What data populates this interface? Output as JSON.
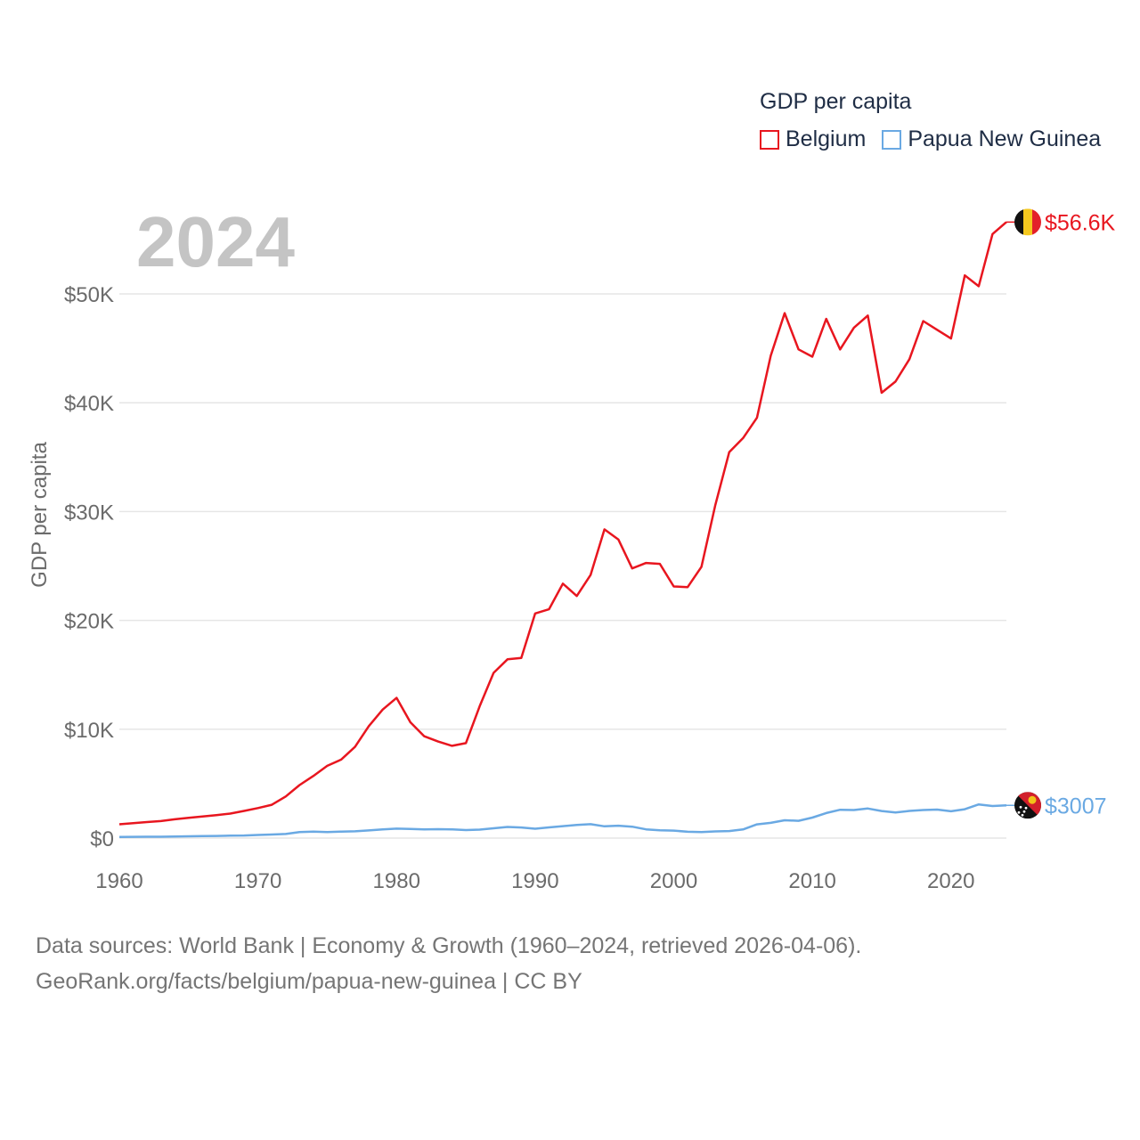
{
  "year_label": "2024",
  "legend": {
    "title": "GDP per capita",
    "items": [
      {
        "label": "Belgium",
        "color": "#e8161f"
      },
      {
        "label": "Papua New Guinea",
        "color": "#6aa9e3"
      }
    ]
  },
  "source": {
    "line1": "Data sources: World Bank | Economy & Growth (1960–2024, retrieved 2026-04-06).",
    "line2": "GeoRank.org/facts/belgium/papua-new-guinea | CC BY"
  },
  "chart_data": {
    "type": "line",
    "title": "GDP per capita",
    "xlabel": "",
    "ylabel": "GDP per capita",
    "xlim": [
      1960,
      2024
    ],
    "ylim": [
      0,
      56600
    ],
    "x_ticks": [
      1960,
      1970,
      1980,
      1990,
      2000,
      2010,
      2020
    ],
    "y_ticks": [
      {
        "value": 0,
        "label": "$0"
      },
      {
        "value": 10000,
        "label": "$10K"
      },
      {
        "value": 20000,
        "label": "$20K"
      },
      {
        "value": 30000,
        "label": "$30K"
      },
      {
        "value": 40000,
        "label": "$40K"
      },
      {
        "value": 50000,
        "label": "$50K"
      }
    ],
    "grid": true,
    "x": [
      1960,
      1961,
      1962,
      1963,
      1964,
      1965,
      1966,
      1967,
      1968,
      1969,
      1970,
      1971,
      1972,
      1973,
      1974,
      1975,
      1976,
      1977,
      1978,
      1979,
      1980,
      1981,
      1982,
      1983,
      1984,
      1985,
      1986,
      1987,
      1988,
      1989,
      1990,
      1991,
      1992,
      1993,
      1994,
      1995,
      1996,
      1997,
      1998,
      1999,
      2000,
      2001,
      2002,
      2003,
      2004,
      2005,
      2006,
      2007,
      2008,
      2009,
      2010,
      2011,
      2012,
      2013,
      2014,
      2015,
      2016,
      2017,
      2018,
      2019,
      2020,
      2021,
      2022,
      2023,
      2024
    ],
    "series": [
      {
        "name": "Belgium",
        "color": "#e8161f",
        "end_label": "$56.6K",
        "flag": "belgium-flag",
        "values": [
          1270,
          1370,
          1470,
          1560,
          1730,
          1860,
          1980,
          2110,
          2250,
          2500,
          2760,
          3060,
          3820,
          4870,
          5710,
          6640,
          7210,
          8380,
          10290,
          11810,
          12880,
          10640,
          9350,
          8870,
          8480,
          8720,
          12120,
          15180,
          16420,
          16550,
          20640,
          21020,
          23380,
          22240,
          24170,
          28360,
          27440,
          24780,
          25280,
          25200,
          23120,
          23060,
          24930,
          30610,
          35470,
          36750,
          38620,
          44320,
          48230,
          44900,
          44230,
          47710,
          44900,
          46900,
          48010,
          40920,
          41950,
          44000,
          47500,
          46700,
          45900,
          51700,
          50700,
          55500,
          56600
        ]
      },
      {
        "name": "Papua New Guinea",
        "color": "#6aa9e3",
        "end_label": "$3007",
        "flag": "papua-new-guinea-flag",
        "values": [
          110,
          115,
          120,
          125,
          140,
          160,
          180,
          200,
          220,
          240,
          290,
          330,
          380,
          560,
          600,
          560,
          600,
          620,
          700,
          800,
          870,
          840,
          790,
          820,
          800,
          740,
          780,
          900,
          1020,
          970,
          860,
          980,
          1100,
          1200,
          1280,
          1080,
          1140,
          1050,
          800,
          710,
          690,
          580,
          550,
          610,
          650,
          790,
          1260,
          1400,
          1640,
          1590,
          1880,
          2300,
          2600,
          2580,
          2720,
          2490,
          2350,
          2500,
          2580,
          2620,
          2460,
          2650,
          3090,
          2950,
          3007
        ]
      }
    ]
  }
}
